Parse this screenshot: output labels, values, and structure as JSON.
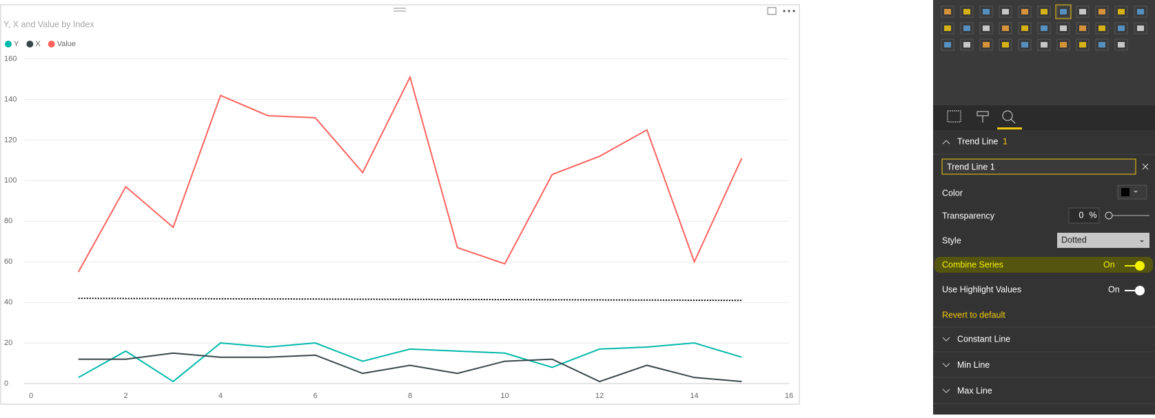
{
  "chart_data": {
    "type": "line",
    "title": "Y, X and Value by Index",
    "x": [
      1,
      2,
      3,
      4,
      5,
      6,
      7,
      8,
      9,
      10,
      11,
      12,
      13,
      14,
      15
    ],
    "series": [
      {
        "name": "Y",
        "color": "#01b8aa",
        "values": [
          3,
          16,
          1,
          20,
          18,
          20,
          11,
          17,
          16,
          15,
          8,
          17,
          18,
          20,
          13
        ]
      },
      {
        "name": "X",
        "color": "#374649",
        "values": [
          12,
          12,
          15,
          13,
          13,
          14,
          5,
          9,
          5,
          11,
          12,
          1,
          9,
          3,
          1
        ]
      },
      {
        "name": "Value",
        "color": "#fd625e",
        "values": [
          55,
          97,
          77,
          142,
          132,
          131,
          104,
          151,
          67,
          59,
          103,
          112,
          125,
          60,
          111
        ]
      }
    ],
    "trend_line": {
      "x": [
        1,
        15
      ],
      "values": [
        42,
        41
      ],
      "color": "#000000",
      "style": "dotted"
    },
    "xlim": [
      0,
      16
    ],
    "xticks": [
      0,
      2,
      4,
      6,
      8,
      10,
      12,
      14,
      16
    ],
    "ylim": [
      0,
      160
    ],
    "yticks": [
      0,
      20,
      40,
      60,
      80,
      100,
      120,
      140,
      160
    ],
    "grid": true,
    "legend": "top-left"
  },
  "panel": {
    "section": "Trend Line",
    "count": 1,
    "name_field": "Trend Line 1",
    "color_label": "Color",
    "transparency_label": "Transparency",
    "transparency_value": 0,
    "transparency_unit": "%",
    "style_label": "Style",
    "style_value": "Dotted",
    "combine_label": "Combine Series",
    "combine_value": "On",
    "highlight_label": "Use Highlight Values",
    "highlight_value": "On",
    "revert": "Revert to default",
    "sections": [
      "Constant Line",
      "Min Line",
      "Max Line"
    ]
  }
}
